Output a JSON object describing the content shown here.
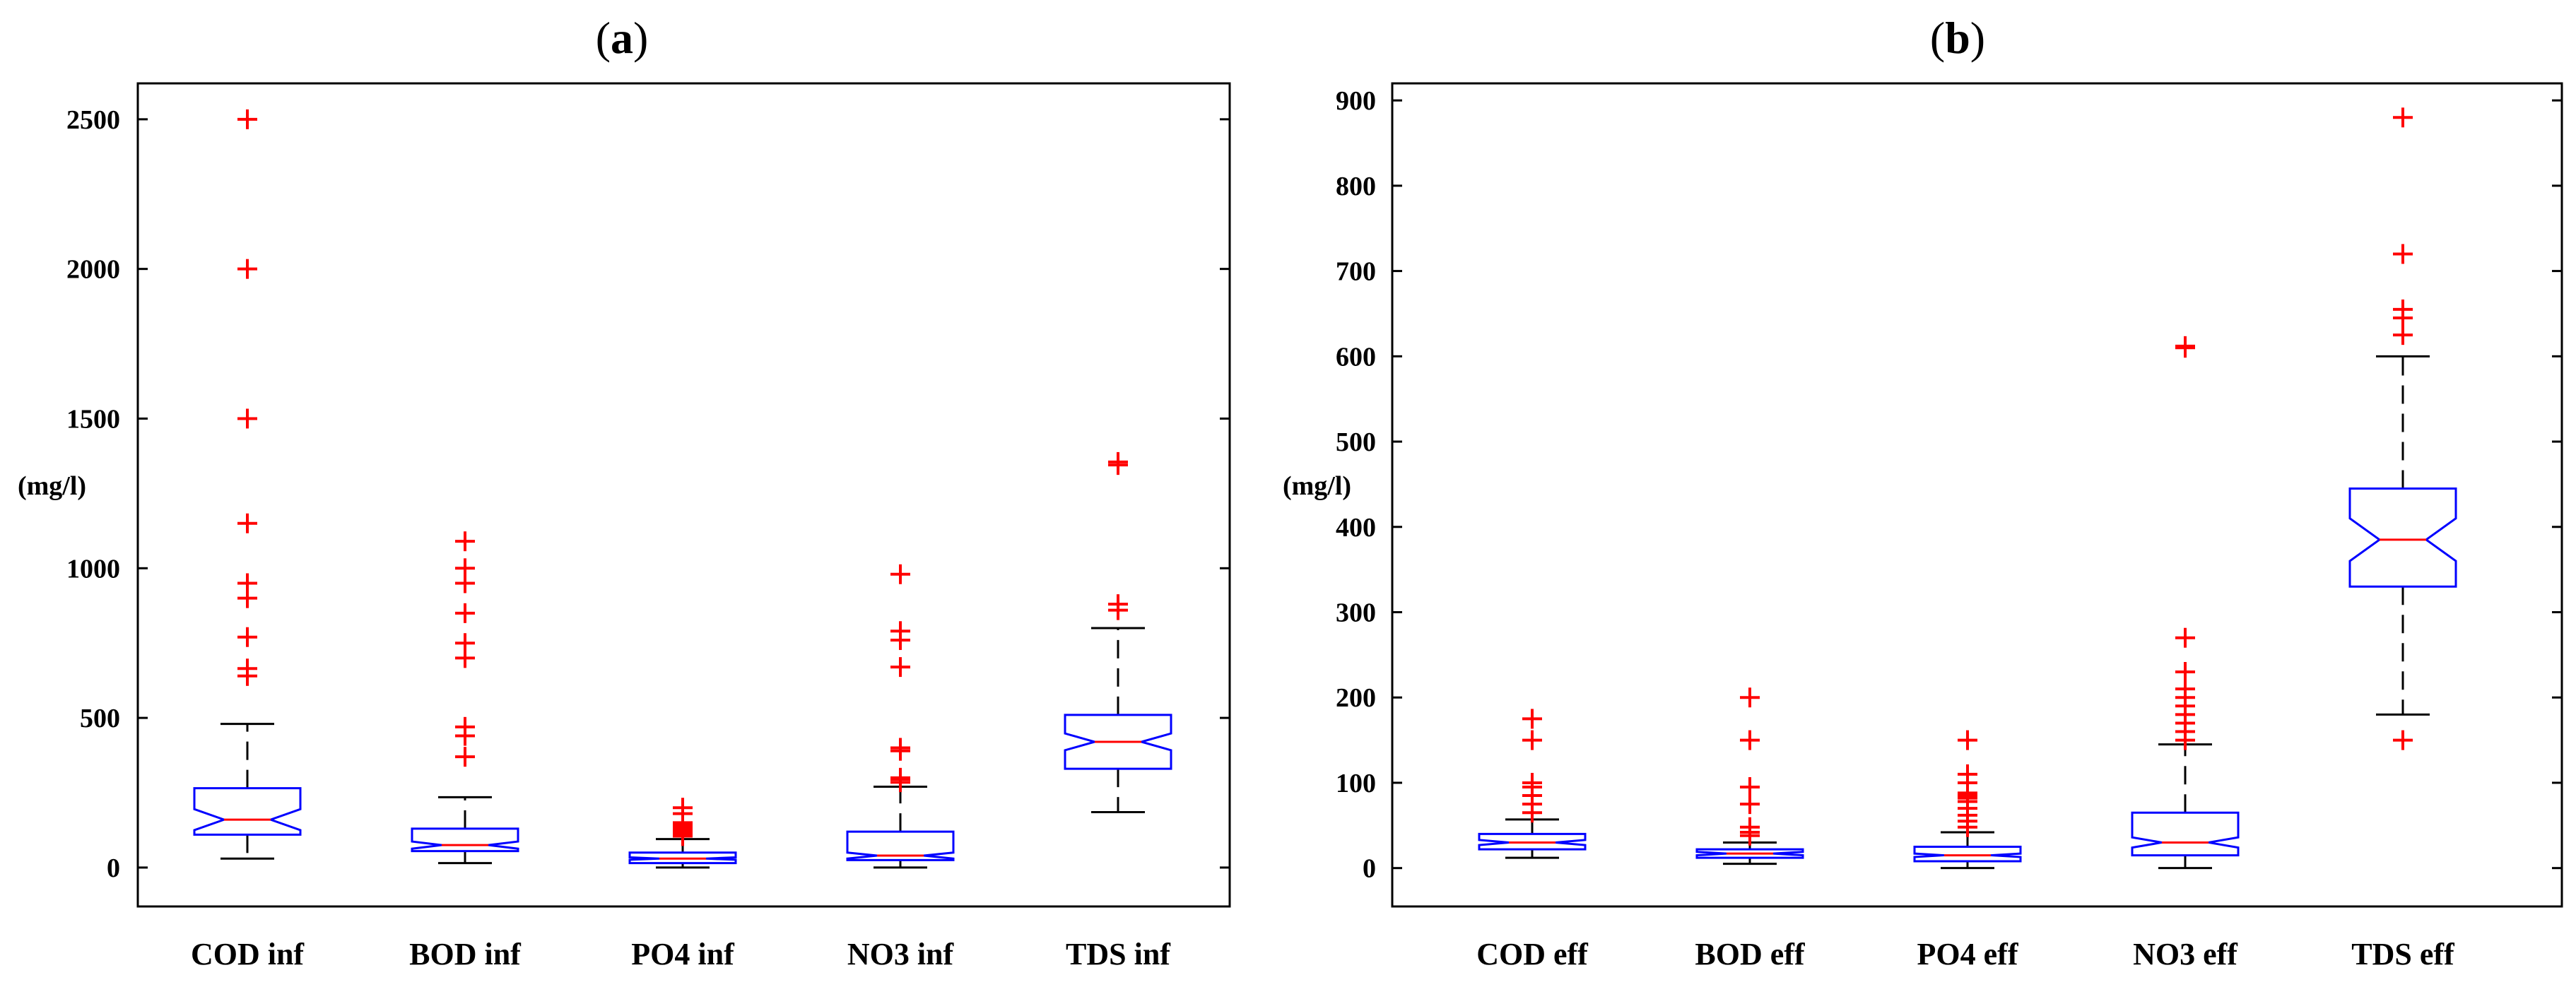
{
  "chart_data": [
    {
      "type": "boxplot",
      "title": "(a)",
      "title_letter": "a",
      "ylabel": "(mg/l)",
      "ylim": [
        -130,
        2620
      ],
      "yticks": [
        0,
        500,
        1000,
        1500,
        2000,
        2500
      ],
      "ytick_labels": [
        "0",
        "500",
        "1000",
        "1500",
        "2000",
        "2500"
      ],
      "notched": true,
      "colors": {
        "box": "#0000ff",
        "median": "#ff0000",
        "whisker": "#000000",
        "outlier": "#ff0000",
        "frame": "#000000"
      },
      "categories": [
        "COD inf",
        "BOD inf",
        "PO4 inf",
        "NO3 inf",
        "TDS inf"
      ],
      "boxes": [
        {
          "name": "COD inf",
          "whisker_low": 30,
          "q1": 110,
          "median": 160,
          "q3": 265,
          "whisker_high": 480,
          "notch_low": 125,
          "notch_high": 195,
          "outliers": [
            640,
            665,
            770,
            900,
            950,
            1150,
            1500,
            2000,
            2500
          ]
        },
        {
          "name": "BOD inf",
          "whisker_low": 15,
          "q1": 55,
          "median": 75,
          "q3": 130,
          "whisker_high": 235,
          "notch_low": 63,
          "notch_high": 87,
          "outliers": [
            370,
            440,
            470,
            700,
            750,
            850,
            950,
            1000,
            1090
          ]
        },
        {
          "name": "PO4 inf",
          "whisker_low": 0,
          "q1": 15,
          "median": 30,
          "q3": 50,
          "whisker_high": 95,
          "notch_low": 26,
          "notch_high": 34,
          "outliers": [
            105,
            112,
            118,
            124,
            130,
            136,
            142,
            150,
            180,
            200
          ]
        },
        {
          "name": "NO3 inf",
          "whisker_low": 0,
          "q1": 25,
          "median": 40,
          "q3": 120,
          "whisker_high": 270,
          "notch_low": 30,
          "notch_high": 50,
          "outliers": [
            285,
            295,
            300,
            390,
            400,
            670,
            760,
            790,
            980
          ]
        },
        {
          "name": "TDS inf",
          "whisker_low": 185,
          "q1": 330,
          "median": 420,
          "q3": 510,
          "whisker_high": 800,
          "notch_low": 392,
          "notch_high": 448,
          "outliers": [
            860,
            880,
            1345,
            1355
          ]
        }
      ]
    },
    {
      "type": "boxplot",
      "title": "(b)",
      "title_letter": "b",
      "ylabel": "(mg/l)",
      "ylim": [
        -45,
        920
      ],
      "yticks": [
        0,
        100,
        200,
        300,
        400,
        500,
        600,
        700,
        800,
        900
      ],
      "ytick_labels": [
        "0",
        "100",
        "200",
        "300",
        "400",
        "500",
        "600",
        "700",
        "800",
        "900"
      ],
      "notched": true,
      "colors": {
        "box": "#0000ff",
        "median": "#ff0000",
        "whisker": "#000000",
        "outlier": "#ff0000",
        "frame": "#000000"
      },
      "categories": [
        "COD eff",
        "BOD eff",
        "PO4 eff",
        "NO3 eff",
        "TDS eff"
      ],
      "boxes": [
        {
          "name": "COD eff",
          "whisker_low": 12,
          "q1": 22,
          "median": 30,
          "q3": 40,
          "whisker_high": 57,
          "notch_low": 27,
          "notch_high": 33,
          "outliers": [
            65,
            75,
            85,
            95,
            100,
            150,
            175
          ]
        },
        {
          "name": "BOD eff",
          "whisker_low": 5,
          "q1": 12,
          "median": 17,
          "q3": 22,
          "whisker_high": 30,
          "notch_low": 15,
          "notch_high": 19,
          "outliers": [
            38,
            42,
            48,
            75,
            95,
            150,
            200
          ]
        },
        {
          "name": "PO4 eff",
          "whisker_low": 0,
          "q1": 8,
          "median": 15,
          "q3": 25,
          "whisker_high": 42,
          "notch_low": 13,
          "notch_high": 17,
          "outliers": [
            48,
            55,
            62,
            70,
            78,
            82,
            85,
            88,
            100,
            110,
            150
          ]
        },
        {
          "name": "NO3 eff",
          "whisker_low": 0,
          "q1": 15,
          "median": 30,
          "q3": 65,
          "whisker_high": 145,
          "notch_low": 24,
          "notch_high": 36,
          "outliers": [
            150,
            160,
            170,
            180,
            190,
            200,
            210,
            230,
            270,
            610,
            612
          ]
        },
        {
          "name": "TDS eff",
          "whisker_low": 180,
          "q1": 330,
          "median": 385,
          "q3": 445,
          "whisker_high": 600,
          "notch_low": 360,
          "notch_high": 410,
          "outliers": [
            150,
            625,
            645,
            655,
            720,
            880
          ]
        }
      ]
    }
  ]
}
